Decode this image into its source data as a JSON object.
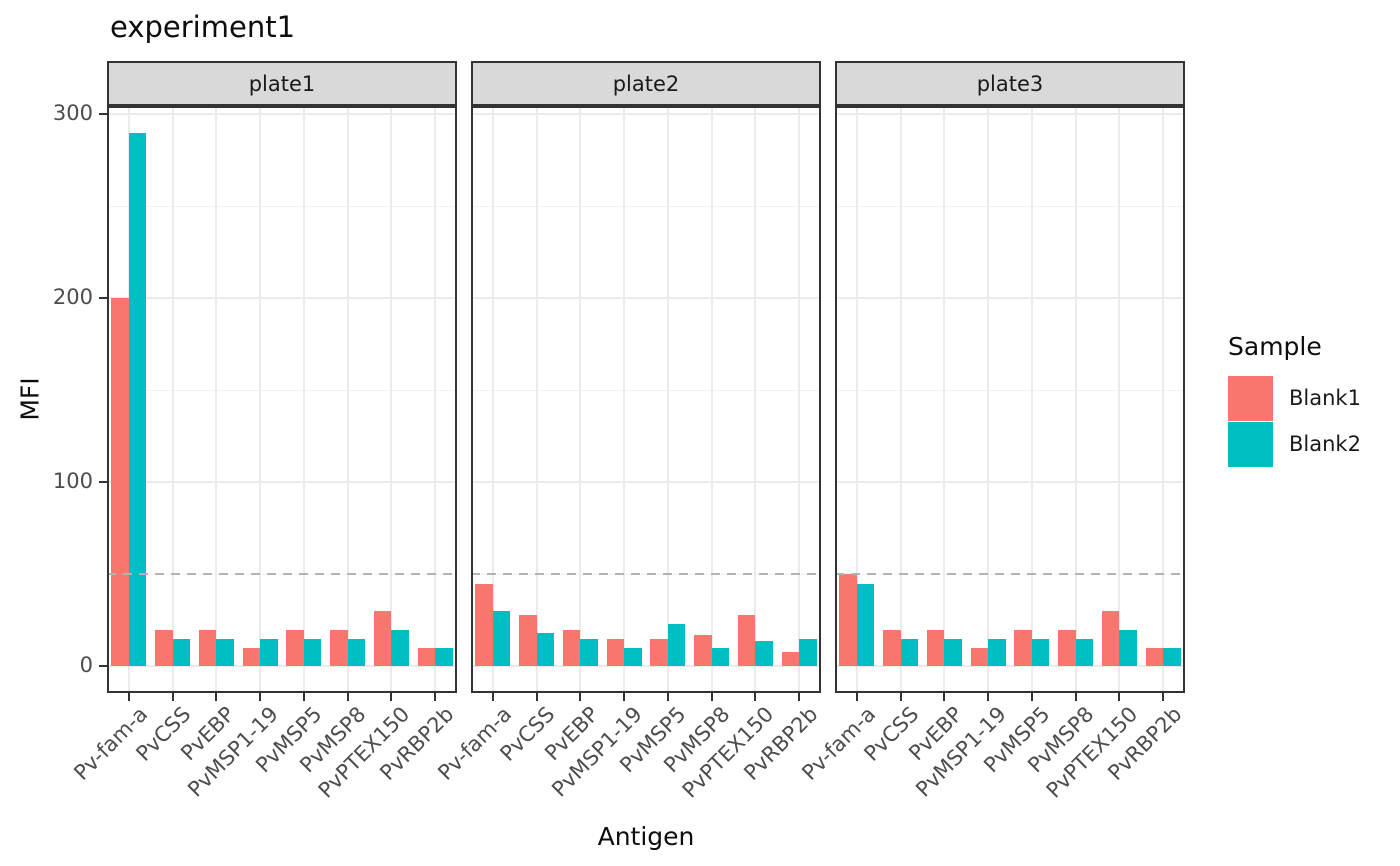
{
  "chart_data": {
    "type": "bar",
    "title": "experiment1",
    "xlabel": "Antigen",
    "ylabel": "MFI",
    "grid": true,
    "legend_position": "right",
    "legend": {
      "title": "Sample",
      "entries": [
        {
          "name": "Blank1",
          "color": "#F8766D"
        },
        {
          "name": "Blank2",
          "color": "#00BFC4"
        }
      ]
    },
    "y_ticks": [
      0,
      100,
      200,
      300
    ],
    "ylim": [
      -14.5,
      304.5
    ],
    "hline": {
      "y": 50,
      "style": "dashed",
      "color": "#b3b3b3"
    },
    "categories": [
      "Pv-fam-a",
      "PvCSS",
      "PvEBP",
      "PvMSP1-19",
      "PvMSP5",
      "PvMSP8",
      "PvPTEX150",
      "PvRBP2b"
    ],
    "facets": [
      {
        "label": "plate1",
        "series": [
          {
            "name": "Blank1",
            "values": [
              200,
              20,
              20,
              10,
              20,
              20,
              30,
              10
            ]
          },
          {
            "name": "Blank2",
            "values": [
              290,
              15,
              15,
              15,
              15,
              15,
              20,
              10
            ]
          }
        ]
      },
      {
        "label": "plate2",
        "series": [
          {
            "name": "Blank1",
            "values": [
              45,
              28,
              20,
              15,
              15,
              17,
              28,
              8
            ]
          },
          {
            "name": "Blank2",
            "values": [
              30,
              18,
              15,
              10,
              23,
              10,
              14,
              15
            ]
          }
        ]
      },
      {
        "label": "plate3",
        "series": [
          {
            "name": "Blank1",
            "values": [
              50,
              20,
              20,
              10,
              20,
              20,
              30,
              10
            ]
          },
          {
            "name": "Blank2",
            "values": [
              45,
              15,
              15,
              15,
              15,
              15,
              20,
              10
            ]
          }
        ]
      }
    ],
    "colors": {
      "panel_background": "#ffffff",
      "strip_background": "#d9d9d9",
      "panel_border": "#333333",
      "gridline": "#ebebeb",
      "axis_text": "#4d4d4d"
    }
  }
}
